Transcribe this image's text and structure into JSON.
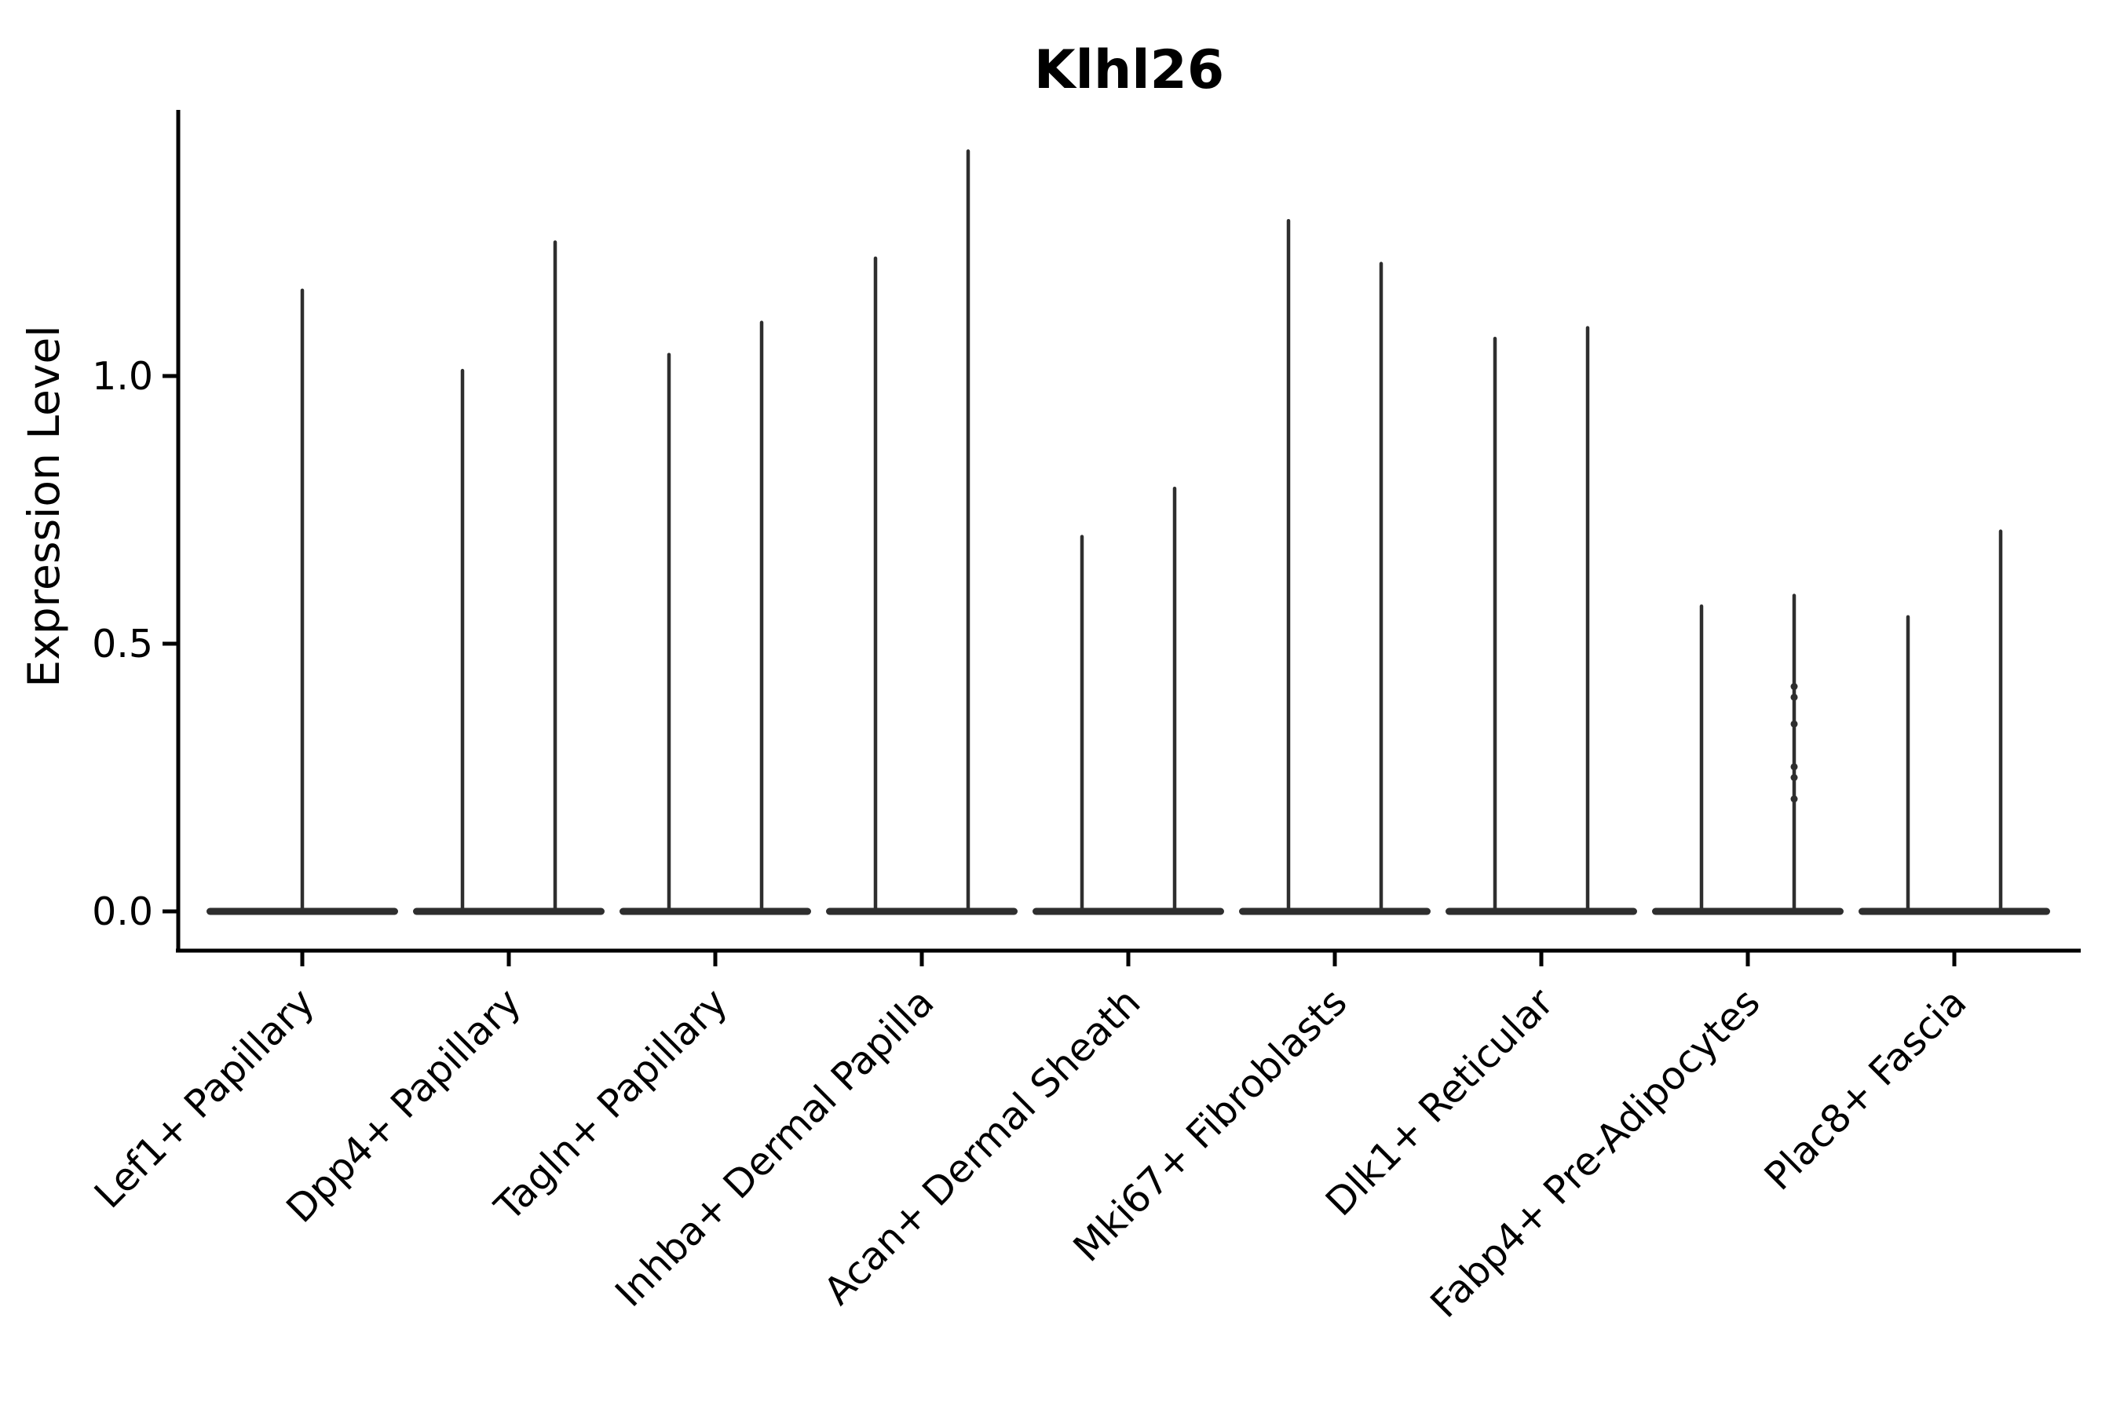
{
  "chart_data": {
    "type": "violin",
    "title": "Klhl26",
    "ylabel": "Expression Level",
    "xlabel": "",
    "grid": false,
    "legend_position": "none",
    "violin_color": "#2e2e2e",
    "axis_color": "#000000",
    "background_color": "#ffffff",
    "ylim": [
      -0.07,
      1.49
    ],
    "yticks": [
      {
        "label": "0.0",
        "value": 0.0
      },
      {
        "label": "0.5",
        "value": 0.5
      },
      {
        "label": "1.0",
        "value": 1.0
      }
    ],
    "description": "Violin plot of Klhl26 expression; most cells near 0 so each violin collapses to a flat base at 0 with a thin spike to its maximum. Eight categories contain two side-by-side violins (split groups), the first category has a single centered violin.",
    "categories": [
      {
        "label": "Lef1+ Papillary",
        "violins": [
          {
            "position": "center",
            "max": 1.16
          }
        ]
      },
      {
        "label": "Dpp4+ Papillary",
        "violins": [
          {
            "position": "left",
            "max": 1.01
          },
          {
            "position": "right",
            "max": 1.25
          }
        ]
      },
      {
        "label": "Tagln+ Papillary",
        "violins": [
          {
            "position": "left",
            "max": 1.04
          },
          {
            "position": "right",
            "max": 1.1
          }
        ]
      },
      {
        "label": "Inhba+ Dermal Papilla",
        "violins": [
          {
            "position": "left",
            "max": 1.22
          },
          {
            "position": "right",
            "max": 1.42
          }
        ]
      },
      {
        "label": "Acan+ Dermal Sheath",
        "violins": [
          {
            "position": "left",
            "max": 0.7
          },
          {
            "position": "right",
            "max": 0.79
          }
        ]
      },
      {
        "label": "Mki67+ Fibroblasts",
        "violins": [
          {
            "position": "left",
            "max": 1.29
          },
          {
            "position": "right",
            "max": 1.21
          }
        ]
      },
      {
        "label": "Dlk1+ Reticular",
        "violins": [
          {
            "position": "left",
            "max": 1.07
          },
          {
            "position": "right",
            "max": 1.09
          }
        ]
      },
      {
        "label": "Fabp4+ Pre-Adipocytes",
        "violins": [
          {
            "position": "left",
            "max": 0.57
          },
          {
            "position": "right",
            "max": 0.59,
            "dots": [
              0.42,
              0.4,
              0.35,
              0.27,
              0.25,
              0.21
            ]
          }
        ]
      },
      {
        "label": "Plac8+ Fascia",
        "violins": [
          {
            "position": "left",
            "max": 0.55
          },
          {
            "position": "right",
            "max": 0.71
          }
        ]
      }
    ]
  }
}
